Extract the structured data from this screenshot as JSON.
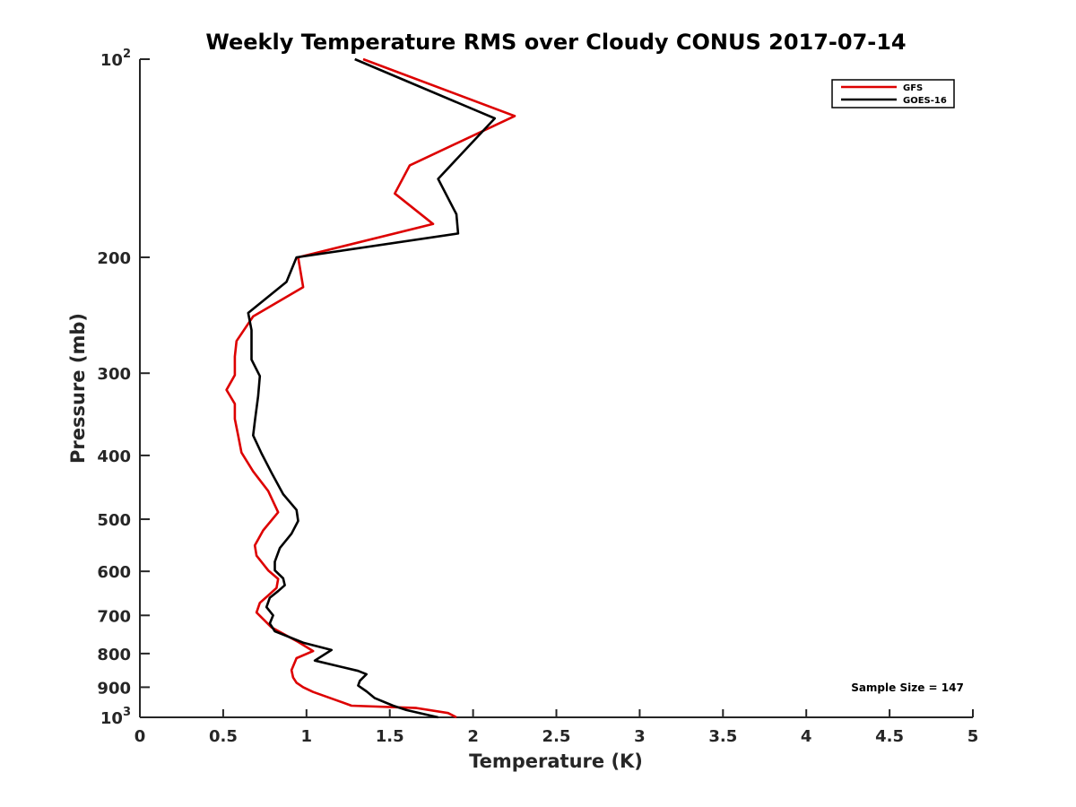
{
  "chart_data": {
    "type": "line",
    "title": "Weekly Temperature RMS over Cloudy CONUS 2017-07-14",
    "xlabel": "Temperature (K)",
    "ylabel": "Pressure (mb)",
    "xlim": [
      0,
      5
    ],
    "ylim": [
      100,
      1000
    ],
    "yscale": "log",
    "y_reversed": true,
    "grid": false,
    "legend_position": "top-right",
    "x_ticks": [
      0,
      0.5,
      1,
      1.5,
      2,
      2.5,
      3,
      3.5,
      4,
      4.5,
      5
    ],
    "x_tick_labels": [
      "0",
      "0.5",
      "1",
      "1.5",
      "2",
      "2.5",
      "3",
      "3.5",
      "4",
      "4.5",
      "5"
    ],
    "y_ticks": [
      100,
      200,
      300,
      400,
      500,
      600,
      700,
      800,
      900,
      1000
    ],
    "y_tick_labels": [
      {
        "base": "10",
        "exp": "2"
      },
      {
        "base": "200"
      },
      {
        "base": "300"
      },
      {
        "base": "400"
      },
      {
        "base": "500"
      },
      {
        "base": "600"
      },
      {
        "base": "700"
      },
      {
        "base": "800"
      },
      {
        "base": "900"
      },
      {
        "base": "10",
        "exp": "3"
      }
    ],
    "annotation": "Sample Size = 147",
    "series": [
      {
        "name": "GFS",
        "color": "#dd0000",
        "points": [
          [
            1.34,
            100
          ],
          [
            2.25,
            122
          ],
          [
            1.62,
            145
          ],
          [
            1.53,
            160
          ],
          [
            1.76,
            178
          ],
          [
            0.95,
            200
          ],
          [
            0.98,
            222
          ],
          [
            0.68,
            246
          ],
          [
            0.58,
            268
          ],
          [
            0.57,
            283
          ],
          [
            0.57,
            302
          ],
          [
            0.52,
            318
          ],
          [
            0.57,
            334
          ],
          [
            0.57,
            352
          ],
          [
            0.59,
            373
          ],
          [
            0.61,
            396
          ],
          [
            0.68,
            423
          ],
          [
            0.77,
            453
          ],
          [
            0.83,
            488
          ],
          [
            0.74,
            520
          ],
          [
            0.69,
            548
          ],
          [
            0.7,
            568
          ],
          [
            0.77,
            598
          ],
          [
            0.83,
            616
          ],
          [
            0.82,
            636
          ],
          [
            0.77,
            653
          ],
          [
            0.72,
            670
          ],
          [
            0.7,
            693
          ],
          [
            0.79,
            730
          ],
          [
            0.95,
            768
          ],
          [
            1.04,
            793
          ],
          [
            0.94,
            813
          ],
          [
            0.91,
            848
          ],
          [
            0.92,
            870
          ],
          [
            0.94,
            886
          ],
          [
            0.98,
            900
          ],
          [
            1.04,
            915
          ],
          [
            1.17,
            940
          ],
          [
            1.27,
            960
          ],
          [
            1.66,
            968
          ],
          [
            1.85,
            985
          ],
          [
            1.9,
            1000
          ]
        ]
      },
      {
        "name": "GOES-16",
        "color": "#000000",
        "points": [
          [
            1.29,
            100
          ],
          [
            2.13,
            123
          ],
          [
            1.79,
            152
          ],
          [
            1.9,
            172
          ],
          [
            1.91,
            184
          ],
          [
            0.94,
            200
          ],
          [
            0.88,
            218
          ],
          [
            0.65,
            243
          ],
          [
            0.67,
            258
          ],
          [
            0.67,
            286
          ],
          [
            0.72,
            303
          ],
          [
            0.71,
            325
          ],
          [
            0.69,
            355
          ],
          [
            0.68,
            373
          ],
          [
            0.73,
            397
          ],
          [
            0.79,
            425
          ],
          [
            0.86,
            458
          ],
          [
            0.94,
            484
          ],
          [
            0.95,
            503
          ],
          [
            0.91,
            526
          ],
          [
            0.84,
            553
          ],
          [
            0.81,
            580
          ],
          [
            0.81,
            598
          ],
          [
            0.86,
            615
          ],
          [
            0.87,
            630
          ],
          [
            0.83,
            643
          ],
          [
            0.78,
            658
          ],
          [
            0.76,
            680
          ],
          [
            0.8,
            700
          ],
          [
            0.78,
            720
          ],
          [
            0.81,
            740
          ],
          [
            0.98,
            770
          ],
          [
            1.15,
            790
          ],
          [
            1.05,
            820
          ],
          [
            1.31,
            850
          ],
          [
            1.36,
            860
          ],
          [
            1.32,
            880
          ],
          [
            1.31,
            895
          ],
          [
            1.36,
            913
          ],
          [
            1.41,
            935
          ],
          [
            1.52,
            960
          ],
          [
            1.6,
            975
          ],
          [
            1.79,
            1000
          ]
        ]
      }
    ]
  }
}
